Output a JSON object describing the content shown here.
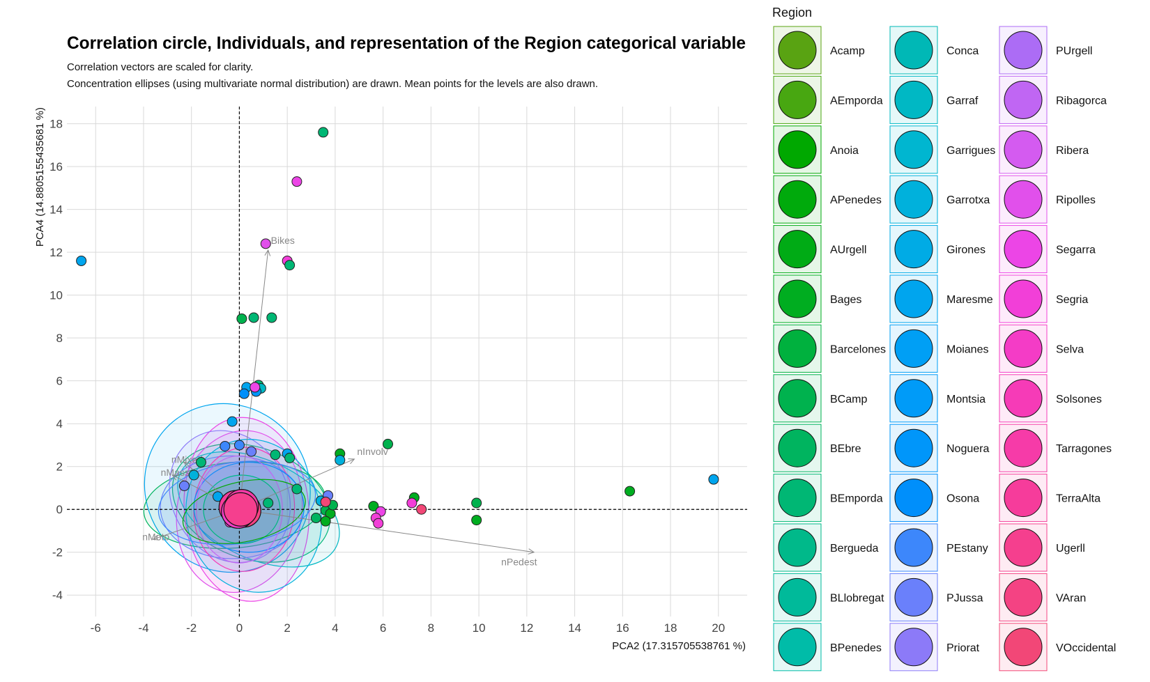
{
  "chart_data": {
    "type": "scatter",
    "title": "Correlation circle, Individuals, and representation of the Region categorical variable",
    "subtitle_lines": [
      "Correlation vectors are scaled for clarity.",
      "Concentration ellipses (using multivariate normal distribution) are drawn. Mean points for the levels are also drawn."
    ],
    "xlabel": "PCA2 (17.315705538761 %)",
    "ylabel": "PCA4 (14.8805155435681 %)",
    "xlim": [
      -7.2,
      21.2
    ],
    "ylim": [
      -5.0,
      18.8
    ],
    "xticks": [
      -6,
      -4,
      -2,
      0,
      2,
      4,
      6,
      8,
      10,
      12,
      14,
      16,
      18,
      20
    ],
    "yticks": [
      -4,
      -2,
      0,
      2,
      4,
      6,
      8,
      10,
      12,
      14,
      16,
      18
    ],
    "grid": true,
    "legend": {
      "title": "Region",
      "placement": "right",
      "columns": [
        [
          {
            "label": "Acamp",
            "color": "#59a312"
          },
          {
            "label": "AEmporda",
            "color": "#48a711"
          },
          {
            "label": "Anoia",
            "color": "#00a800"
          },
          {
            "label": "APenedes",
            "color": "#00aa0c"
          },
          {
            "label": "AUrgell",
            "color": "#00ab15"
          },
          {
            "label": "Bages",
            "color": "#00ad20"
          },
          {
            "label": "Barcelones",
            "color": "#00b13e"
          },
          {
            "label": "BCamp",
            "color": "#00b24e"
          },
          {
            "label": "BEbre",
            "color": "#00b45f"
          },
          {
            "label": "BEmporda",
            "color": "#00b774"
          },
          {
            "label": "Bergueda",
            "color": "#00b98a"
          },
          {
            "label": "BLlobregat",
            "color": "#00ba9a"
          },
          {
            "label": "BPenedes",
            "color": "#00bca8"
          }
        ],
        [
          {
            "label": "Conca",
            "color": "#00b8b6"
          },
          {
            "label": "Garraf",
            "color": "#00b8c4"
          },
          {
            "label": "Garrigues",
            "color": "#00b6d0"
          },
          {
            "label": "Garrotxa",
            "color": "#00b1dc"
          },
          {
            "label": "Girones",
            "color": "#00abe5"
          },
          {
            "label": "Maresme",
            "color": "#00a5ee"
          },
          {
            "label": "Moianes",
            "color": "#009ff5"
          },
          {
            "label": "Montsia",
            "color": "#009bf8"
          },
          {
            "label": "Noguera",
            "color": "#0096fa"
          },
          {
            "label": "Osona",
            "color": "#008ffb"
          },
          {
            "label": "PEstany",
            "color": "#3d87fb"
          },
          {
            "label": "PJussa",
            "color": "#6a80fb"
          },
          {
            "label": "Priorat",
            "color": "#8c7af8"
          }
        ],
        [
          {
            "label": "PUrgell",
            "color": "#ac6cf5"
          },
          {
            "label": "Ribagorca",
            "color": "#c066f3"
          },
          {
            "label": "Ribera",
            "color": "#d45bf0"
          },
          {
            "label": "Ripolles",
            "color": "#e150eb"
          },
          {
            "label": "Segarra",
            "color": "#ec45e6"
          },
          {
            "label": "Segria",
            "color": "#f23fd8"
          },
          {
            "label": "Selva",
            "color": "#f43cc6"
          },
          {
            "label": "Solsones",
            "color": "#f63bb7"
          },
          {
            "label": "Tarragones",
            "color": "#f63ba8"
          },
          {
            "label": "TerraAlta",
            "color": "#f63c9b"
          },
          {
            "label": "Ugerll",
            "color": "#f53f8e"
          },
          {
            "label": "VAran",
            "color": "#f44383"
          },
          {
            "label": "VOccidental",
            "color": "#f24777"
          }
        ]
      ]
    },
    "vectors": [
      {
        "label": "Bikes",
        "x": 1.2,
        "y": 12.1
      },
      {
        "label": "nInvolv",
        "x": 4.8,
        "y": 2.35
      },
      {
        "label": "nPedest",
        "x": 12.3,
        "y": -2.0
      },
      {
        "label": "nMoto",
        "x": -3.6,
        "y": -1.4
      },
      {
        "label": "nMixed",
        "x": -2.3,
        "y": 2.2
      },
      {
        "label": "nMass",
        "x": -2.8,
        "y": 1.6
      }
    ],
    "points": [
      {
        "x": -6.6,
        "y": 11.6,
        "color": "#00a5ee"
      },
      {
        "x": 3.5,
        "y": 17.6,
        "color": "#00b774"
      },
      {
        "x": 2.4,
        "y": 15.3,
        "color": "#ec45e6"
      },
      {
        "x": 1.1,
        "y": 12.4,
        "color": "#e150eb"
      },
      {
        "x": 2.0,
        "y": 11.6,
        "color": "#f23fd8"
      },
      {
        "x": 2.1,
        "y": 11.4,
        "color": "#00b774"
      },
      {
        "x": 0.1,
        "y": 8.9,
        "color": "#00b24e"
      },
      {
        "x": 0.6,
        "y": 8.95,
        "color": "#00b774"
      },
      {
        "x": 1.35,
        "y": 8.95,
        "color": "#00b774"
      },
      {
        "x": 0.3,
        "y": 5.7,
        "color": "#00a5ee"
      },
      {
        "x": 0.2,
        "y": 5.4,
        "color": "#008ffb"
      },
      {
        "x": 0.8,
        "y": 5.8,
        "color": "#00b774"
      },
      {
        "x": 0.9,
        "y": 5.65,
        "color": "#00b8c4"
      },
      {
        "x": 0.7,
        "y": 5.5,
        "color": "#0096fa"
      },
      {
        "x": 0.65,
        "y": 5.7,
        "color": "#ec45e6"
      },
      {
        "x": -0.3,
        "y": 4.1,
        "color": "#00a5ee"
      },
      {
        "x": 6.2,
        "y": 3.05,
        "color": "#00b24e"
      },
      {
        "x": 4.2,
        "y": 2.6,
        "color": "#00ad20"
      },
      {
        "x": 4.2,
        "y": 2.3,
        "color": "#00b1dc"
      },
      {
        "x": 2.0,
        "y": 2.6,
        "color": "#00a5ee"
      },
      {
        "x": 2.1,
        "y": 2.4,
        "color": "#00b774"
      },
      {
        "x": 1.5,
        "y": 2.55,
        "color": "#00b774"
      },
      {
        "x": -0.6,
        "y": 2.95,
        "color": "#3d87fb"
      },
      {
        "x": 0.0,
        "y": 3.0,
        "color": "#3d87fb"
      },
      {
        "x": 0.5,
        "y": 2.7,
        "color": "#6a80fb"
      },
      {
        "x": 2.4,
        "y": 0.95,
        "color": "#00b774"
      },
      {
        "x": 16.3,
        "y": 0.85,
        "color": "#00ad20"
      },
      {
        "x": 19.8,
        "y": 1.4,
        "color": "#00a5ee"
      },
      {
        "x": 3.7,
        "y": 0.65,
        "color": "#6a80fb"
      },
      {
        "x": 3.4,
        "y": 0.4,
        "color": "#00b1dc"
      },
      {
        "x": 3.6,
        "y": -0.05,
        "color": "#00b24e"
      },
      {
        "x": 3.8,
        "y": -0.2,
        "color": "#00ad20"
      },
      {
        "x": 3.9,
        "y": 0.2,
        "color": "#00b24e"
      },
      {
        "x": 3.6,
        "y": -0.55,
        "color": "#00ad20"
      },
      {
        "x": 3.2,
        "y": -0.4,
        "color": "#00b45f"
      },
      {
        "x": 3.6,
        "y": 0.35,
        "color": "#f24777"
      },
      {
        "x": 7.3,
        "y": 0.55,
        "color": "#00ad20"
      },
      {
        "x": 7.2,
        "y": 0.3,
        "color": "#f23fd8"
      },
      {
        "x": 7.6,
        "y": 0.0,
        "color": "#f24777"
      },
      {
        "x": 9.9,
        "y": 0.3,
        "color": "#00b24e"
      },
      {
        "x": 9.9,
        "y": -0.5,
        "color": "#00ad20"
      },
      {
        "x": 5.6,
        "y": 0.15,
        "color": "#00ad20"
      },
      {
        "x": 5.9,
        "y": -0.1,
        "color": "#ec45e6"
      },
      {
        "x": 5.7,
        "y": -0.4,
        "color": "#f23fd8"
      },
      {
        "x": 5.8,
        "y": -0.65,
        "color": "#f23fd8"
      },
      {
        "x": -2.3,
        "y": 1.1,
        "color": "#6a80fb"
      },
      {
        "x": -1.6,
        "y": 2.2,
        "color": "#00b774"
      },
      {
        "x": -1.9,
        "y": 1.6,
        "color": "#00b1dc"
      },
      {
        "x": -0.9,
        "y": 0.6,
        "color": "#00a5ee"
      },
      {
        "x": 1.2,
        "y": 0.3,
        "color": "#00b774"
      },
      {
        "x": -0.4,
        "y": -0.6,
        "color": "#f23fd8"
      }
    ],
    "ellipses": [
      {
        "cx": -0.5,
        "cy": 1.0,
        "rx": 3.4,
        "ry": 4.0,
        "rot": 35,
        "color": "#00a5ee"
      },
      {
        "cx": 0.5,
        "cy": 0.3,
        "rx": 3.4,
        "ry": 2.6,
        "rot": -20,
        "color": "#00b774"
      },
      {
        "cx": 0.3,
        "cy": 0.0,
        "rx": 2.6,
        "ry": 4.3,
        "rot": 5,
        "color": "#ec45e6"
      },
      {
        "cx": -0.2,
        "cy": 0.2,
        "rx": 3.8,
        "ry": 2.0,
        "rot": 5,
        "color": "#00b45f"
      },
      {
        "cx": 0.0,
        "cy": -0.1,
        "rx": 2.6,
        "ry": 3.8,
        "rot": -10,
        "color": "#e150eb"
      },
      {
        "cx": 0.8,
        "cy": 0.0,
        "rx": 3.6,
        "ry": 2.3,
        "rot": -25,
        "color": "#00b8c4"
      },
      {
        "cx": -0.3,
        "cy": 0.1,
        "rx": 3.0,
        "ry": 2.4,
        "rot": 0,
        "color": "#6a80fb"
      },
      {
        "cx": -0.4,
        "cy": 0.6,
        "rx": 2.4,
        "ry": 3.2,
        "rot": 30,
        "color": "#8c7af8"
      },
      {
        "cx": 0.6,
        "cy": -0.3,
        "rx": 2.8,
        "ry": 3.6,
        "rot": 15,
        "color": "#00b1dc"
      },
      {
        "cx": 0.2,
        "cy": 0.0,
        "rx": 2.1,
        "ry": 2.9,
        "rot": -5,
        "color": "#f63bb7"
      },
      {
        "cx": -0.1,
        "cy": 0.3,
        "rx": 3.3,
        "ry": 1.9,
        "rot": 8,
        "color": "#3d87fb"
      },
      {
        "cx": 0.4,
        "cy": 0.1,
        "rx": 2.3,
        "ry": 2.1,
        "rot": 0,
        "color": "#008ffb"
      },
      {
        "cx": 0.0,
        "cy": 0.0,
        "rx": 1.8,
        "ry": 2.5,
        "rot": 0,
        "color": "#c066f3"
      },
      {
        "cx": 0.1,
        "cy": 0.0,
        "rx": 1.6,
        "ry": 1.6,
        "rot": 0,
        "color": "#00b98a"
      },
      {
        "cx": 0.2,
        "cy": -0.1,
        "rx": 2.6,
        "ry": 1.4,
        "rot": 12,
        "color": "#00a800"
      }
    ],
    "means": [
      {
        "x": 0.0,
        "y": 0.05,
        "color": "#f24777"
      },
      {
        "x": -0.15,
        "y": 0.1,
        "color": "#f63c9b"
      },
      {
        "x": 0.2,
        "y": -0.05,
        "color": "#f44383"
      },
      {
        "x": 0.1,
        "y": 0.15,
        "color": "#f63ba8"
      },
      {
        "x": -0.05,
        "y": -0.1,
        "color": "#f43cc6"
      },
      {
        "x": 0.05,
        "y": 0.0,
        "color": "#f53f8e"
      }
    ]
  }
}
